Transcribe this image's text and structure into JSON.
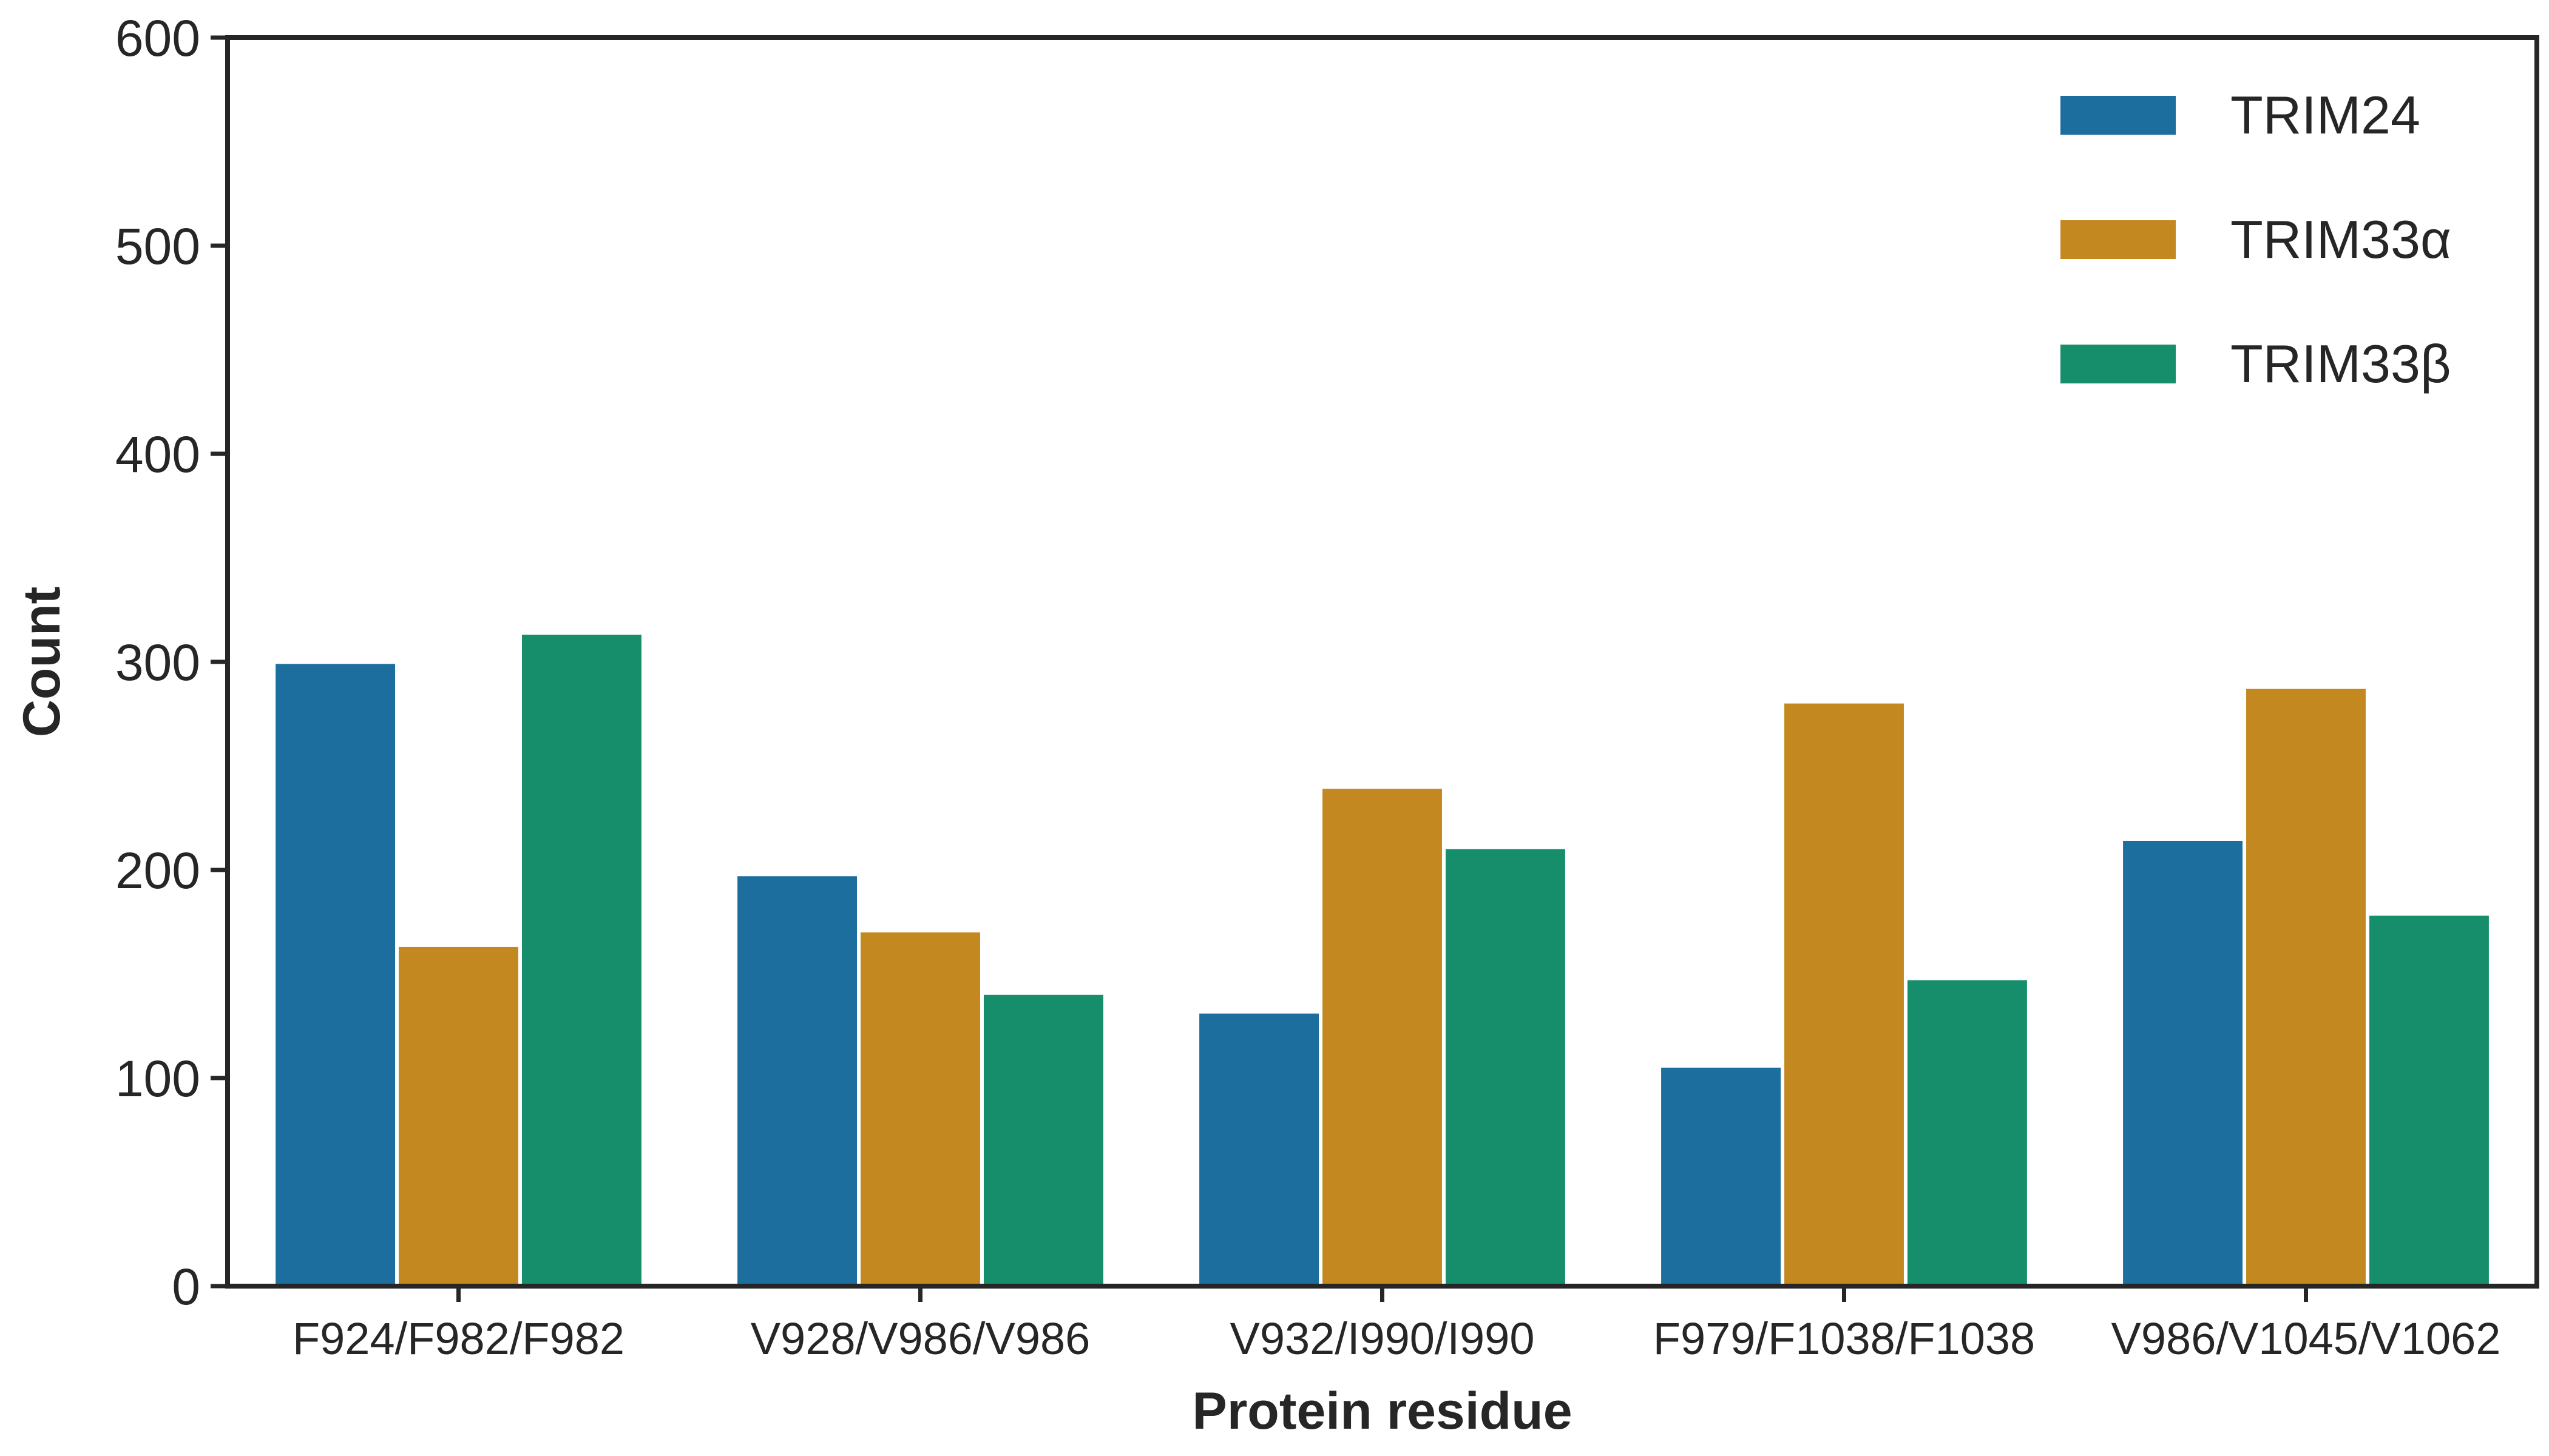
{
  "chart_data": {
    "type": "bar",
    "xlabel": "Protein residue",
    "ylabel": "Count",
    "ylim": [
      0,
      600
    ],
    "yticks": [
      0,
      100,
      200,
      300,
      400,
      500,
      600
    ],
    "categories": [
      "F924/F982/F982",
      "V928/V986/V986",
      "V932/I990/I990",
      "F979/F1038/F1038",
      "V986/V1045/V1062"
    ],
    "series": [
      {
        "name": "TRIM24",
        "color": "#1b6e9e",
        "values": [
          299,
          197,
          131,
          105,
          214
        ]
      },
      {
        "name": "TRIM33α",
        "color": "#c48821",
        "values": [
          163,
          170,
          239,
          280,
          287
        ]
      },
      {
        "name": "TRIM33β",
        "color": "#168e6c",
        "values": [
          313,
          140,
          210,
          147,
          178
        ]
      }
    ],
    "legend_position": "top-right",
    "grid": false
  }
}
